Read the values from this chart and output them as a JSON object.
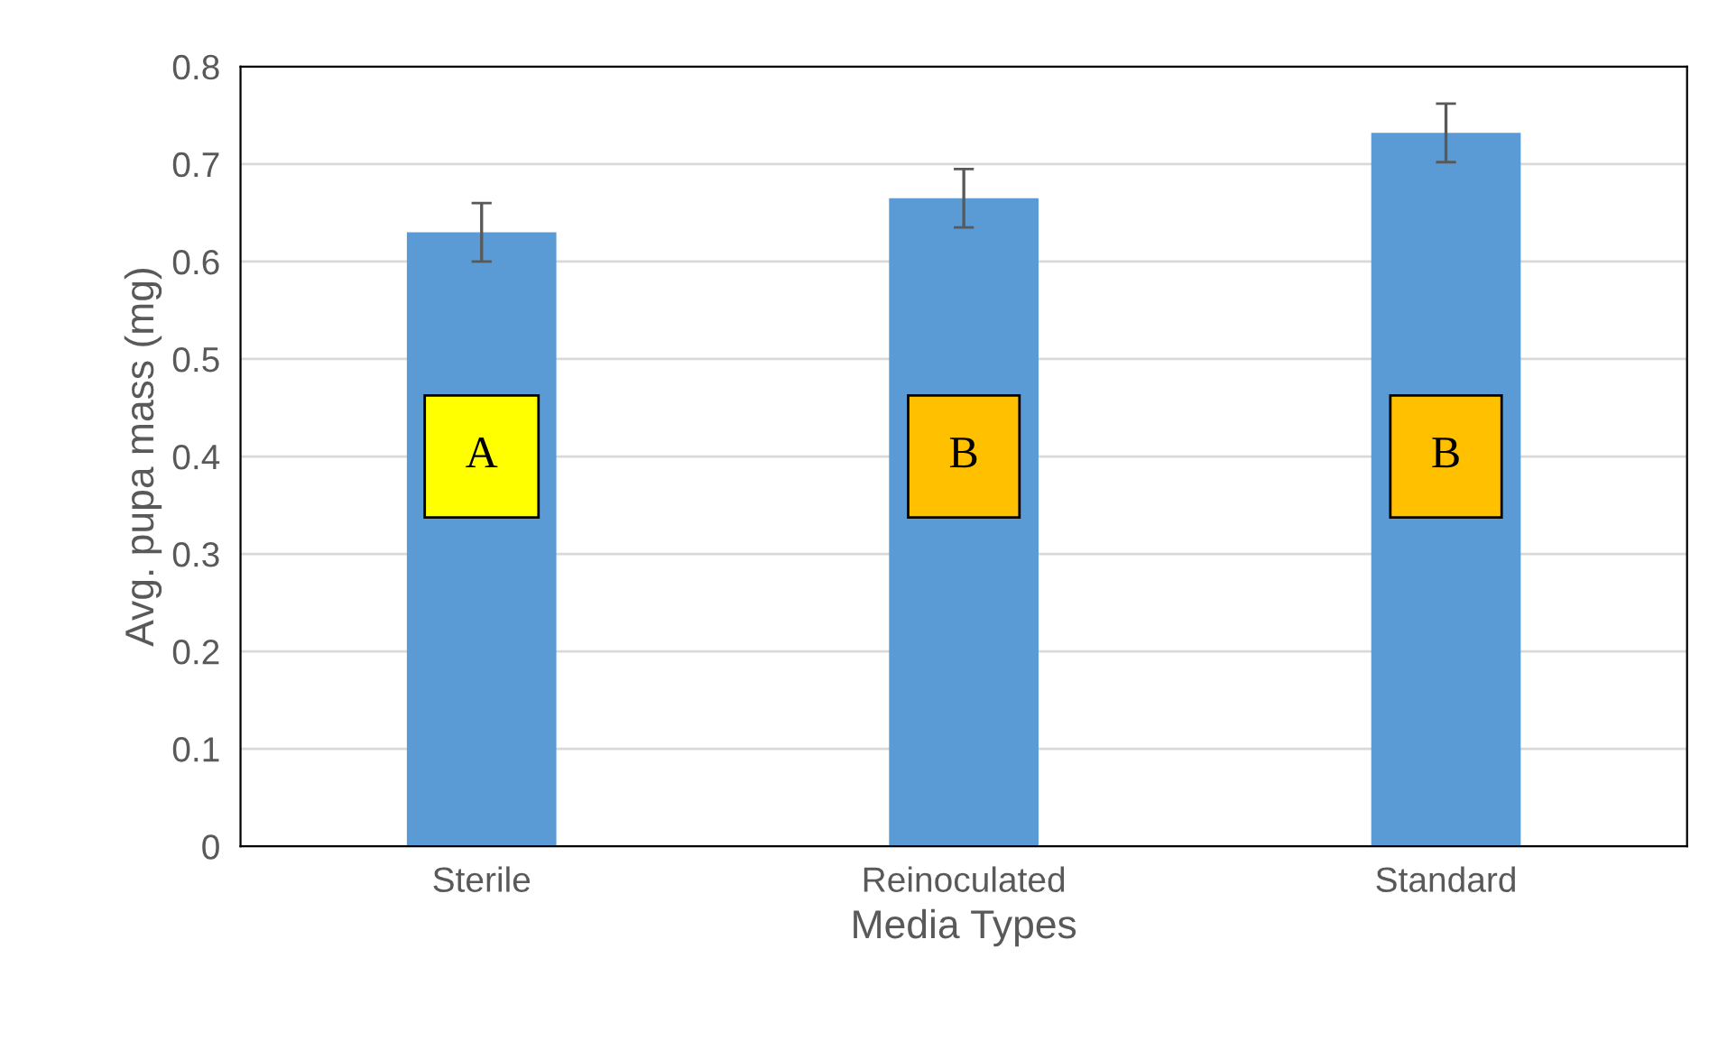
{
  "chart_data": {
    "type": "bar",
    "xlabel": "Media Types",
    "ylabel": "Avg. pupa mass (mg)",
    "categories": [
      "Sterile",
      "Reinoculated",
      "Standard"
    ],
    "values": [
      0.63,
      0.665,
      0.732
    ],
    "errors": [
      0.03,
      0.03,
      0.03
    ],
    "color": "#5b9bd5",
    "ylim": [
      0,
      0.8
    ],
    "yticks": [
      0,
      0.1,
      0.2,
      0.3,
      0.4,
      0.5,
      0.6,
      0.7,
      0.8
    ],
    "grid": "y",
    "legend": false,
    "annotations": [
      "A",
      "B",
      "B"
    ]
  }
}
